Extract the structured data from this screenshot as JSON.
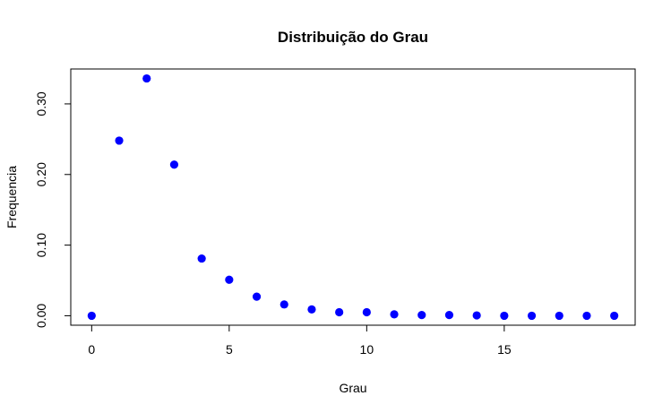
{
  "chart_data": {
    "type": "scatter",
    "title": "Distribuição do Grau",
    "xlabel": "Grau",
    "ylabel": "Frequencia",
    "x": [
      0,
      1,
      2,
      3,
      4,
      5,
      6,
      7,
      8,
      9,
      10,
      11,
      12,
      13,
      14,
      15,
      16,
      17,
      18,
      19
    ],
    "y": [
      0.0,
      0.248,
      0.336,
      0.214,
      0.081,
      0.051,
      0.027,
      0.016,
      0.009,
      0.005,
      0.005,
      0.002,
      0.001,
      0.001,
      0.0005,
      0.0,
      0.0,
      0.0,
      0.0,
      0.0
    ],
    "xlim": [
      -0.76,
      19.76
    ],
    "ylim": [
      -0.0134,
      0.3494
    ],
    "x_ticks": [
      0,
      5,
      10,
      15
    ],
    "x_tick_labels": [
      "0",
      "5",
      "10",
      "15"
    ],
    "y_ticks": [
      0.0,
      0.1,
      0.2,
      0.3
    ],
    "y_tick_labels": [
      "0.00",
      "0.10",
      "0.20",
      "0.30"
    ],
    "point_color": "#0000ff",
    "grid": false,
    "legend": "none"
  }
}
